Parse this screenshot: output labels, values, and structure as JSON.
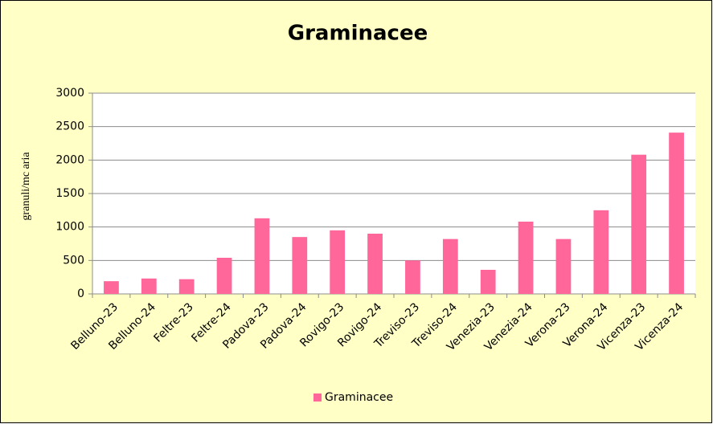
{
  "chart_data": {
    "type": "bar",
    "title": "Graminacee",
    "y_label": "granuli/mc aria",
    "categories": [
      "Belluno-23",
      "Belluno-24",
      "Feltre-23",
      "Feltre-24",
      "Padova-23",
      "Padova-24",
      "Rovigo-23",
      "Rovigo-24",
      "Treviso-23",
      "Treviso-24",
      "Venezia-23",
      "Venezia-24",
      "Verona-23",
      "Verona-24",
      "Vicenza-23",
      "Vicenza-24"
    ],
    "series": [
      {
        "name": "Graminacee",
        "color": "#ff6699",
        "values": [
          190,
          230,
          220,
          540,
          1130,
          850,
          950,
          900,
          500,
          820,
          360,
          1080,
          820,
          1250,
          2080,
          2410
        ]
      }
    ],
    "ylim": [
      0,
      3000
    ],
    "yticks": [
      0,
      500,
      1000,
      1500,
      2000,
      2500,
      3000
    ],
    "grid": true,
    "legend": "bottom"
  }
}
